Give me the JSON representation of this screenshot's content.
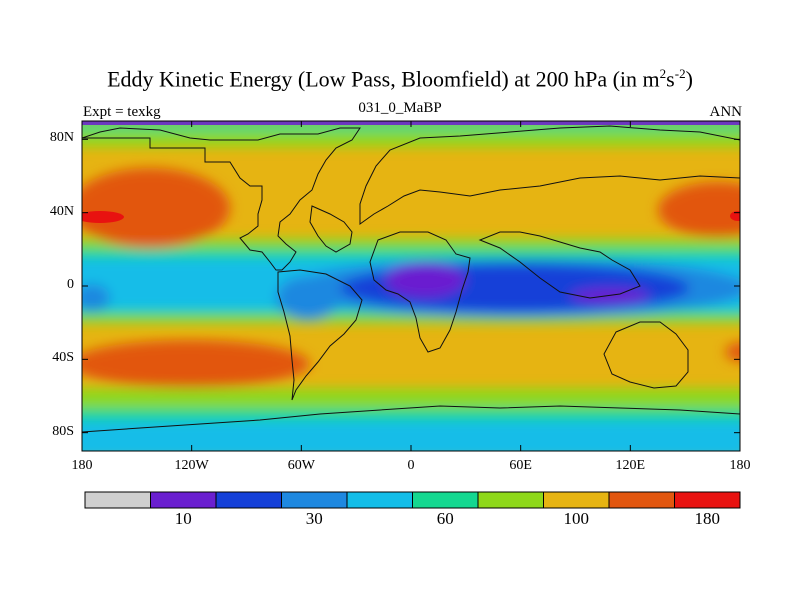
{
  "map": {
    "title_main": "Eddy Kinetic Energy (Low Pass, Bloomfield) at 200 hPa (in m",
    "title_sup1": "2",
    "title_mid": "s",
    "title_sup2": "-2",
    "title_end": ")",
    "subtitle": "031_0_MaBP",
    "left_label": "Expt = texkg",
    "right_label": "ANN",
    "lat_ticks": [
      {
        "label": "80N",
        "lat": 80
      },
      {
        "label": "40N",
        "lat": 40
      },
      {
        "label": "0",
        "lat": 0
      },
      {
        "label": "40S",
        "lat": -40
      },
      {
        "label": "80S",
        "lat": -80
      }
    ],
    "lon_ticks": [
      {
        "label": "180",
        "lon": -180
      },
      {
        "label": "120W",
        "lon": -120
      },
      {
        "label": "60W",
        "lon": -60
      },
      {
        "label": "0",
        "lon": 0
      },
      {
        "label": "60E",
        "lon": 60
      },
      {
        "label": "120E",
        "lon": 120
      },
      {
        "label": "180",
        "lon": 180
      }
    ]
  },
  "colorbar": {
    "colors": [
      "#d0d0d0",
      "#6a1fd0",
      "#1540d8",
      "#1e88e0",
      "#12bde8",
      "#14d890",
      "#8ed81a",
      "#e6b412",
      "#e2560e",
      "#e81210"
    ],
    "labels": [
      {
        "text": "10",
        "boundary": 2
      },
      {
        "text": "30",
        "boundary": 4
      },
      {
        "text": "60",
        "boundary": 6
      },
      {
        "text": "100",
        "boundary": 8
      },
      {
        "text": "180",
        "boundary": 10
      }
    ]
  }
}
